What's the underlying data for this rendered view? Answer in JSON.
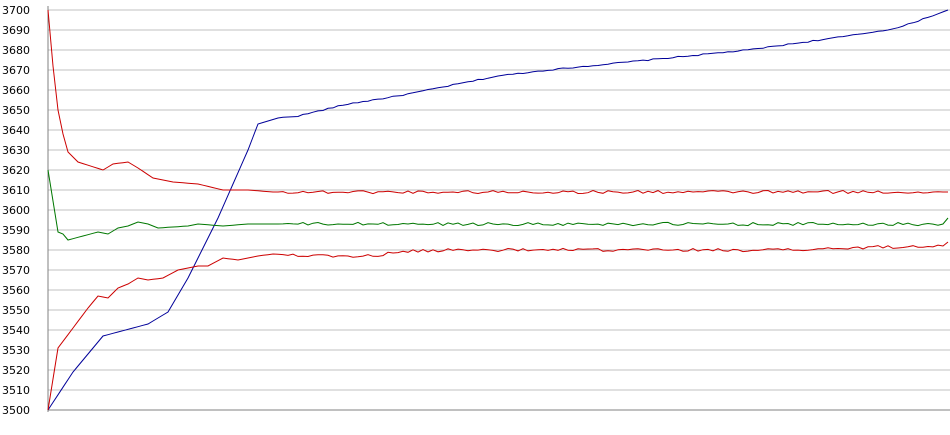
{
  "chart_data": {
    "type": "line",
    "title": "",
    "xlabel": "",
    "ylabel": "",
    "ylim": [
      3500,
      3700
    ],
    "yticks": [
      3700,
      3690,
      3680,
      3670,
      3660,
      3650,
      3640,
      3630,
      3620,
      3610,
      3600,
      3590,
      3580,
      3570,
      3560,
      3550,
      3540,
      3530,
      3520,
      3510,
      3500
    ],
    "grid": true,
    "legend": "none",
    "n_points": 181,
    "series": [
      {
        "color": "#000099",
        "knots": [
          [
            0,
            3500
          ],
          [
            5,
            3519
          ],
          [
            11,
            3537
          ],
          [
            17,
            3541
          ],
          [
            20,
            3543
          ],
          [
            24,
            3549
          ],
          [
            28,
            3566
          ],
          [
            34,
            3596
          ],
          [
            40,
            3630
          ],
          [
            42,
            3643
          ],
          [
            46,
            3646
          ],
          [
            50,
            3647
          ],
          [
            60,
            3653
          ],
          [
            70,
            3657
          ],
          [
            80,
            3662
          ],
          [
            90,
            3667
          ],
          [
            100,
            3670
          ],
          [
            120,
            3675
          ],
          [
            140,
            3680
          ],
          [
            160,
            3687
          ],
          [
            170,
            3691
          ],
          [
            180,
            3700
          ]
        ]
      },
      {
        "color": "#cc0000",
        "knots": [
          [
            0,
            3700
          ],
          [
            1,
            3672
          ],
          [
            2,
            3650
          ],
          [
            3,
            3638
          ],
          [
            4,
            3629
          ],
          [
            6,
            3624
          ],
          [
            11,
            3620
          ],
          [
            13,
            3623
          ],
          [
            16,
            3624
          ],
          [
            18,
            3621
          ],
          [
            21,
            3616
          ],
          [
            25,
            3614
          ],
          [
            30,
            3613
          ],
          [
            35,
            3610
          ],
          [
            40,
            3610
          ],
          [
            45,
            3609
          ],
          [
            180,
            3609
          ]
        ]
      },
      {
        "color": "#007700",
        "knots": [
          [
            0,
            3620
          ],
          [
            2,
            3589
          ],
          [
            3,
            3588
          ],
          [
            4,
            3585
          ],
          [
            7,
            3587
          ],
          [
            10,
            3589
          ],
          [
            12,
            3588
          ],
          [
            14,
            3591
          ],
          [
            16,
            3592
          ],
          [
            18,
            3594
          ],
          [
            20,
            3593
          ],
          [
            22,
            3591
          ],
          [
            28,
            3592
          ],
          [
            30,
            3593
          ],
          [
            35,
            3592
          ],
          [
            40,
            3593
          ],
          [
            45,
            3593
          ],
          [
            179,
            3593
          ],
          [
            180,
            3596
          ]
        ]
      },
      {
        "color": "#cc0000",
        "knots": [
          [
            0,
            3500
          ],
          [
            2,
            3531
          ],
          [
            5,
            3541
          ],
          [
            8,
            3551
          ],
          [
            10,
            3557
          ],
          [
            12,
            3556
          ],
          [
            14,
            3561
          ],
          [
            16,
            3563
          ],
          [
            18,
            3566
          ],
          [
            20,
            3565
          ],
          [
            23,
            3566
          ],
          [
            26,
            3570
          ],
          [
            28,
            3571
          ],
          [
            30,
            3572
          ],
          [
            32,
            3572
          ],
          [
            35,
            3576
          ],
          [
            38,
            3575
          ],
          [
            42,
            3577
          ],
          [
            45,
            3578
          ],
          [
            55,
            3577
          ],
          [
            65,
            3577
          ],
          [
            70,
            3579
          ],
          [
            80,
            3580
          ],
          [
            100,
            3580
          ],
          [
            140,
            3580
          ],
          [
            150,
            3580
          ],
          [
            160,
            3581
          ],
          [
            175,
            3582
          ],
          [
            179,
            3582
          ],
          [
            180,
            3584
          ]
        ]
      }
    ]
  }
}
